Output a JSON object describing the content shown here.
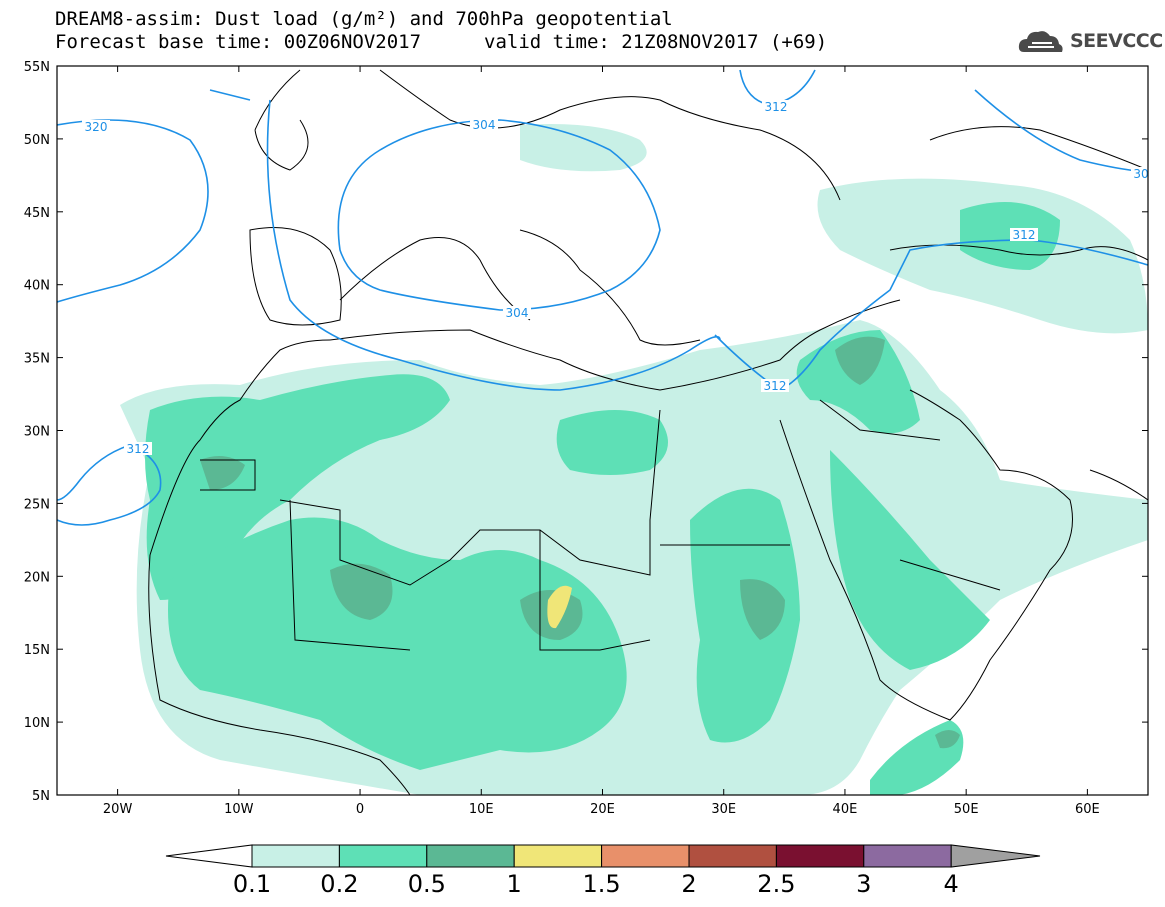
{
  "header": {
    "title_line1": "DREAM8-assim: Dust load (g/m²) and 700hPa geopotential",
    "title_line2a": "Forecast base time: 00Z06NOV2017",
    "title_line2b": "valid time: 21Z08NOV2017 (+69)"
  },
  "logo": {
    "text": "SEEVCCC",
    "icon": "cloud-icon"
  },
  "map": {
    "lat_labels": [
      "55N",
      "50N",
      "45N",
      "40N",
      "35N",
      "30N",
      "25N",
      "20N",
      "15N",
      "10N",
      "5N"
    ],
    "lon_labels": [
      "20W",
      "10W",
      "0",
      "10E",
      "20E",
      "30E",
      "40E",
      "50E",
      "60E"
    ],
    "contour_labels": [
      "320",
      "304",
      "304",
      "312",
      "312",
      "312",
      "312",
      "30"
    ],
    "contour_color": "#1e90e6",
    "coast_color": "#000000"
  },
  "colorbar": {
    "labels": [
      "0.1",
      "0.2",
      "0.5",
      "1",
      "1.5",
      "2",
      "2.5",
      "3",
      "4"
    ],
    "colors": [
      "#c8f0e6",
      "#5ee0b6",
      "#5bb894",
      "#f0e678",
      "#e8906a",
      "#b05040",
      "#7a1030",
      "#8c6aa0"
    ],
    "under_color": "#ffffff",
    "over_color": "#a0a0a0"
  }
}
